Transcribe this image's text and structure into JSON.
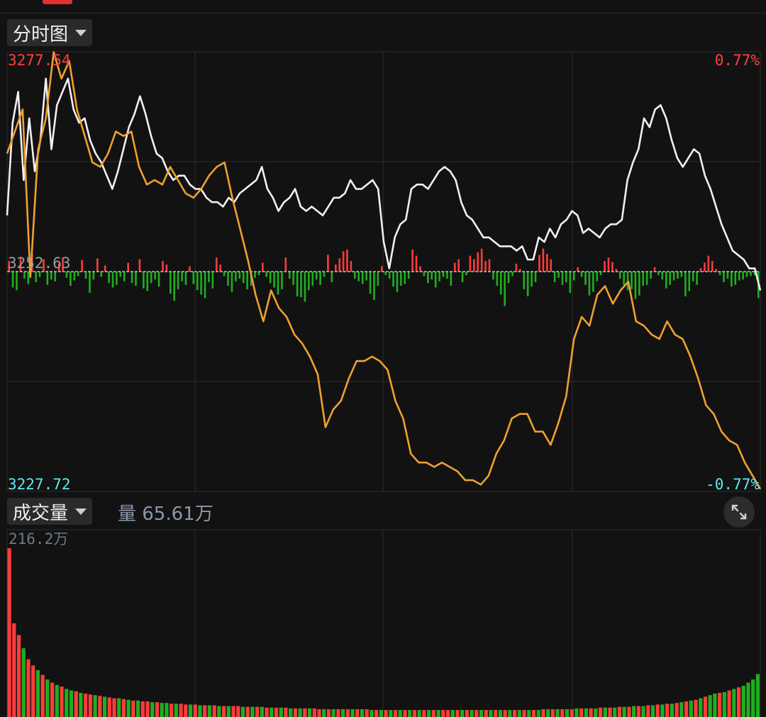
{
  "header": {
    "timeshare_label": "分时图",
    "volume_label": "成交量",
    "volume_readout": "量 65.61万"
  },
  "icons": {
    "dropdown": "caret-down-icon",
    "expand": "expand-arrows-icon"
  },
  "colors": {
    "up": "#ff3b3b",
    "down": "#1fae1f",
    "price_line": "#f0f0f0",
    "avg_line": "#f0a030",
    "upper_label": "#ff4040",
    "lower_label": "#5ee8f0",
    "grid": "#2c2c2c"
  },
  "chart_data": [
    {
      "type": "line",
      "name": "分时图",
      "y_max_label": "3277.54",
      "y_mid_label": "3252.63",
      "y_min_label": "3227.72",
      "pct_max_label": "0.77%",
      "pct_min_label": "-0.77%",
      "ylim": [
        3227.72,
        3277.54
      ],
      "baseline": 3252.63,
      "grid": true,
      "series": [
        {
          "values": [
            3259.0,
            3269.5,
            3273.0,
            3263.0,
            3270.0,
            3264.0,
            3267.5,
            3274.5,
            3266.5,
            3271.5,
            3273.0,
            3274.5,
            3271.0,
            3269.5,
            3270.0,
            3267.5,
            3266.0,
            3265.0,
            3263.5,
            3262.0,
            3264.0,
            3266.5,
            3269.0,
            3270.5,
            3272.5,
            3270.5,
            3268.0,
            3266.0,
            3265.5,
            3264.0,
            3263.0,
            3263.5,
            3263.5,
            3262.5,
            3262.0,
            3262.0,
            3261.0,
            3260.5,
            3260.5,
            3260.0,
            3261.0,
            3260.5,
            3261.5,
            3262.0,
            3262.5,
            3263.0,
            3264.5,
            3262.0,
            3261.0,
            3259.5,
            3260.5,
            3261.0,
            3262.0,
            3260.0,
            3259.5,
            3260.0,
            3259.5,
            3259.0,
            3260.0,
            3261.0,
            3261.0,
            3261.5,
            3263.0,
            3262.0,
            3262.0,
            3262.5,
            3263.0,
            3262.0,
            3256.0,
            3253.0,
            3256.5,
            3258.0,
            3258.5,
            3262.0,
            3262.5,
            3262.5,
            3262.0,
            3263.0,
            3264.0,
            3264.5,
            3264.0,
            3263.0,
            3260.5,
            3259.0,
            3258.5,
            3257.5,
            3256.5,
            3256.5,
            3256.0,
            3255.5,
            3255.5,
            3255.5,
            3255.0,
            3255.5,
            3254.0,
            3254.0,
            3256.5,
            3256.0,
            3257.5,
            3256.5,
            3258.0,
            3258.5,
            3259.5,
            3259.0,
            3257.0,
            3257.5,
            3257.0,
            3256.5,
            3257.5,
            3258.0,
            3258.0,
            3258.5,
            3263.0,
            3265.0,
            3266.5,
            3270.0,
            3269.0,
            3271.0,
            3271.5,
            3270.0,
            3267.5,
            3265.5,
            3264.5,
            3265.5,
            3266.5,
            3266.0,
            3263.5,
            3262.0,
            3260.0,
            3258.0,
            3256.5,
            3255.0,
            3254.5,
            3254.0,
            3253.0,
            3253.0,
            3250.5
          ]
        },
        {
          "values": [
            3266.0,
            3268.5,
            3271.0,
            3252.0,
            3266.5,
            3270.0,
            3277.5,
            3274.5,
            3276.5,
            3271.0,
            3268.0,
            3265.0,
            3264.5,
            3266.0,
            3268.5,
            3268.0,
            3268.5,
            3264.5,
            3262.5,
            3263.0,
            3262.5,
            3264.5,
            3263.0,
            3261.5,
            3261.0,
            3262.0,
            3263.5,
            3264.5,
            3265.0,
            3261.0,
            3257.5,
            3254.0,
            3250.0,
            3247.0,
            3250.5,
            3248.5,
            3247.5,
            3245.5,
            3244.5,
            3243.0,
            3241.0,
            3235.0,
            3237.0,
            3238.0,
            3240.5,
            3242.5,
            3242.5,
            3243.0,
            3242.5,
            3241.5,
            3238.0,
            3236.0,
            3232.0,
            3231.0,
            3231.0,
            3230.5,
            3231.0,
            3230.5,
            3230.0,
            3229.0,
            3229.0,
            3228.5,
            3229.5,
            3232.0,
            3233.5,
            3236.0,
            3236.5,
            3236.5,
            3234.5,
            3234.5,
            3233.0,
            3235.5,
            3238.5,
            3245.0,
            3247.5,
            3246.5,
            3250.0,
            3251.0,
            3249.0,
            3250.5,
            3251.5,
            3247.0,
            3246.5,
            3245.5,
            3245.0,
            3247.0,
            3245.5,
            3245.0,
            3243.0,
            3240.5,
            3237.5,
            3236.5,
            3234.5,
            3233.5,
            3233.0,
            3231.0,
            3229.5,
            3228.0
          ]
        }
      ],
      "bars": [
        1.2,
        -1.8,
        -2.1,
        1.5,
        -0.8,
        -1.4,
        2.0,
        -1.2,
        -0.6,
        1.4,
        -1.5,
        -0.9,
        -1.1,
        0.9,
        1.6,
        -0.7,
        -1.6,
        -1.0,
        -0.5,
        1.3,
        -0.8,
        -2.4,
        -0.9,
        1.5,
        -0.6,
        0.7,
        -1.3,
        -1.8,
        -1.5,
        -0.6,
        -1.1,
        1.0,
        -1.3,
        -1.6,
        1.4,
        -1.9,
        -2.2,
        -1.3,
        -0.9,
        -1.7,
        1.2,
        0.8,
        -2.5,
        -3.3,
        -2.0,
        -1.1,
        -1.5,
        0.6,
        -1.4,
        -2.1,
        -2.6,
        -3.0,
        -1.2,
        -1.9,
        1.6,
        0.8,
        -0.5,
        -1.6,
        -2.3,
        -1.1,
        -0.8,
        -1.3,
        -2.0,
        -1.6,
        -0.7,
        -0.4,
        1.0,
        -0.6,
        -1.3,
        -1.8,
        -2.6,
        -2.0,
        1.6,
        -0.8,
        -1.5,
        -2.8,
        -2.9,
        -3.4,
        -2.1,
        -1.6,
        -0.9,
        -1.5,
        -0.6,
        1.9,
        -1.2,
        0.8,
        1.5,
        2.3,
        2.5,
        1.2,
        -0.8,
        -1.1,
        -1.4,
        -1.0,
        -2.5,
        -3.2,
        -1.6,
        0.6,
        -0.4,
        -0.8,
        -1.7,
        -2.3,
        -1.6,
        -1.4,
        -0.8,
        2.5,
        1.8,
        0.6,
        -0.5,
        -1.3,
        -0.9,
        -1.8,
        -1.1,
        -0.6,
        -0.8,
        -1.6,
        1.0,
        1.4,
        -1.2,
        -0.4,
        1.8,
        1.4,
        2.2,
        2.6,
        1.2,
        1.4,
        -0.9,
        -1.6,
        -2.6,
        -3.9,
        -1.3,
        -0.5,
        0.9,
        0.3,
        -2.0,
        -2.8,
        -1.7,
        -1.2,
        1.9,
        2.6,
        2.0,
        1.4,
        -1.2,
        -0.7,
        -1.5,
        -1.2,
        -2.4,
        -1.0,
        0.5,
        -0.6,
        -1.5,
        -2.7,
        -2.3,
        -1.1,
        -0.4,
        1.2,
        1.6,
        1.1,
        0.3,
        -0.8,
        -1.5,
        -2.1,
        -2.0,
        -3.1,
        -2.7,
        -1.6,
        -1.5,
        -0.8,
        0.5,
        -0.4,
        -0.9,
        -1.9,
        -1.5,
        -1.0,
        -0.8,
        -0.6,
        -2.8,
        -2.2,
        -1.1,
        -1.5,
        0.4,
        1.0,
        1.8,
        1.2,
        0.3,
        -0.4,
        -1.2,
        -0.8,
        -1.7,
        -1.5,
        -1.0,
        -0.9,
        -0.6,
        -0.5,
        -0.4,
        -3.0
      ]
    },
    {
      "type": "bar",
      "name": "成交量",
      "y_max_label": "216.2万",
      "ylim": [
        0,
        216.2
      ],
      "values": [
        216.2,
        120,
        105,
        88,
        74,
        66,
        60,
        54,
        48,
        44,
        41,
        39,
        36,
        34,
        33,
        31,
        30,
        29,
        28,
        27,
        26,
        25,
        24,
        24,
        23,
        22,
        21,
        21,
        20,
        20,
        19,
        19,
        18,
        18,
        17,
        17,
        17,
        16,
        16,
        16,
        15,
        15,
        15,
        15,
        14,
        14,
        14,
        14,
        14,
        13,
        13,
        13,
        13,
        13,
        12,
        12,
        12,
        12,
        12,
        11,
        11,
        11,
        11,
        11,
        11,
        10,
        10,
        10,
        10,
        10,
        10,
        10,
        10,
        10,
        10,
        10,
        9,
        9,
        9,
        9,
        9,
        9,
        9,
        9,
        9,
        9,
        9,
        9,
        9,
        9,
        9,
        9,
        9,
        9,
        9,
        9,
        9,
        9,
        9,
        9,
        9,
        9,
        9,
        9,
        9,
        9,
        9,
        9,
        9,
        9,
        9,
        9,
        10,
        10,
        10,
        10,
        10,
        10,
        10,
        11,
        11,
        11,
        11,
        11,
        12,
        12,
        12,
        12,
        13,
        13,
        13,
        14,
        14,
        14,
        15,
        15,
        16,
        16,
        17,
        17,
        18,
        19,
        20,
        21,
        22,
        24,
        26,
        28,
        30,
        31,
        32,
        34,
        36,
        38,
        40,
        44,
        48,
        55
      ],
      "colors": [
        "up",
        "up",
        "up",
        "down",
        "up",
        "up",
        "down",
        "up",
        "down",
        "up",
        "down",
        "up",
        "down",
        "down",
        "up",
        "down",
        "up",
        "up",
        "down",
        "up",
        "down",
        "up",
        "up",
        "down",
        "up",
        "down",
        "up",
        "down",
        "up",
        "up",
        "down",
        "up",
        "down",
        "down",
        "up",
        "down",
        "up",
        "up",
        "down",
        "up",
        "down",
        "up",
        "down",
        "up",
        "down",
        "up",
        "down",
        "up",
        "up",
        "down",
        "up",
        "down",
        "up",
        "down",
        "up",
        "down",
        "up",
        "down",
        "up",
        "down",
        "up",
        "down",
        "up",
        "down",
        "up",
        "up",
        "down",
        "up",
        "down",
        "up",
        "down",
        "up",
        "down",
        "up",
        "down",
        "up",
        "down",
        "up",
        "down",
        "up",
        "down",
        "up",
        "down",
        "up",
        "down",
        "up",
        "down",
        "up",
        "down",
        "up",
        "down",
        "up",
        "up",
        "down",
        "up",
        "down",
        "up",
        "down",
        "up",
        "down",
        "up",
        "down",
        "up",
        "down",
        "up",
        "down",
        "up",
        "down",
        "up",
        "down",
        "up",
        "down",
        "up",
        "down",
        "up",
        "down",
        "up",
        "down",
        "up",
        "down",
        "up",
        "down",
        "up",
        "down",
        "up",
        "down",
        "up",
        "down",
        "up",
        "down",
        "up",
        "down",
        "up",
        "down",
        "up",
        "down",
        "up",
        "down",
        "up",
        "down",
        "up",
        "down",
        "up",
        "down",
        "up",
        "down",
        "up",
        "down",
        "down",
        "up",
        "down",
        "up",
        "down",
        "up",
        "down",
        "down",
        "down"
      ]
    }
  ]
}
